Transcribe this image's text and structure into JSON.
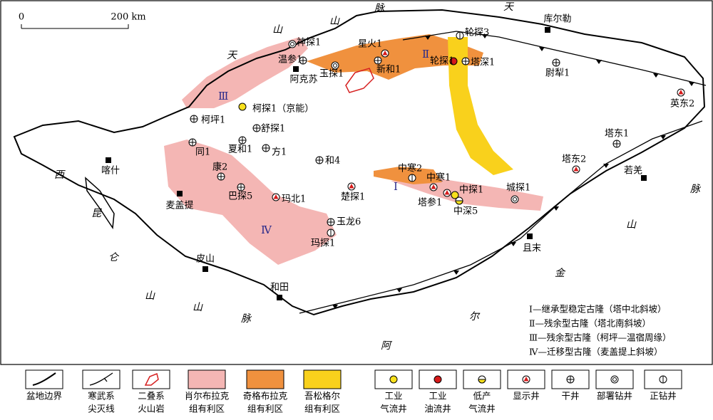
{
  "scale_bar": {
    "start": "0",
    "end": "200 km"
  },
  "mountain_labels": [
    "天",
    "山",
    "山",
    "脉",
    "天",
    "西",
    "昆",
    "仑",
    "山",
    "山",
    "脉",
    "阿",
    "尔",
    "金",
    "山",
    "脉"
  ],
  "regions": [
    "Ⅲ",
    "Ⅱ",
    "Ⅰ",
    "Ⅳ"
  ],
  "cities": [
    "库尔勒",
    "阿克苏",
    "喀什",
    "麦盖提",
    "皮山",
    "和田",
    "且末",
    "若羌"
  ],
  "wells": [
    "神探1",
    "温参1",
    "星火1",
    "新和1",
    "玉探1",
    "轮探3",
    "轮探1",
    "塔深1",
    "尉犁1",
    "英东2",
    "柯探1（京能）",
    "柯坪1",
    "舒探1",
    "夏和1",
    "方1",
    "同1",
    "和4",
    "康2",
    "巴探5",
    "玛北1",
    "楚探1",
    "玉龙6",
    "玛探1",
    "中寒2",
    "中寒1",
    "塔参1",
    "中探1",
    "中深5",
    "城探1",
    "塔东2",
    "塔东1"
  ],
  "notes": [
    "Ⅰ—继承型稳定古隆（塔中北斜坡）",
    "Ⅱ—残余型古隆（塔北南斜坡）",
    "Ⅲ—残余型古隆（柯坪—温宿周缘）",
    "Ⅳ—迁移型古隆（麦盖提上斜坡）"
  ],
  "legend": [
    [
      "盆地边界"
    ],
    [
      "寒武系",
      "尖灭线"
    ],
    [
      "二叠系",
      "火山岩"
    ],
    [
      "肖尔布拉克",
      "组有利区"
    ],
    [
      "奇格布拉克",
      "组有利区"
    ],
    [
      "吾松格尔",
      "组有利区"
    ],
    [
      "工业",
      "气流井"
    ],
    [
      "工业",
      "油流井"
    ],
    [
      "低产",
      "气流井"
    ],
    [
      "显示井"
    ],
    [
      "干井"
    ],
    [
      "部署钻井"
    ],
    [
      "正钻井"
    ]
  ]
}
